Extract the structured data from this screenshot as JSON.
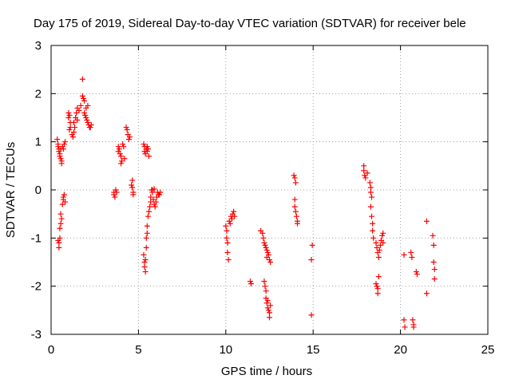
{
  "chart_data": {
    "type": "scatter",
    "title": "Day 175 of 2019, Sidereal Day-to-day VTEC variation (SDTVAR) for receiver bele",
    "xlabel": "GPS time / hours",
    "ylabel": "SDTVAR / TECUs",
    "xlim": [
      0,
      25
    ],
    "ylim": [
      -3,
      3
    ],
    "xticks": [
      0,
      5,
      10,
      15,
      20,
      25
    ],
    "yticks": [
      -3,
      -2,
      -1,
      0,
      1,
      2,
      3
    ],
    "grid": true,
    "marker": "+",
    "color": "#ff0000",
    "series": [
      {
        "name": "SDTVAR",
        "points": [
          [
            0.35,
            1.05
          ],
          [
            0.4,
            0.95
          ],
          [
            0.4,
            0.9
          ],
          [
            0.45,
            0.85
          ],
          [
            0.45,
            0.8
          ],
          [
            0.5,
            0.75
          ],
          [
            0.5,
            0.7
          ],
          [
            0.55,
            0.85
          ],
          [
            0.55,
            0.65
          ],
          [
            0.6,
            0.6
          ],
          [
            0.6,
            0.55
          ],
          [
            0.65,
            0.9
          ],
          [
            0.7,
            0.85
          ],
          [
            0.75,
            0.95
          ],
          [
            0.8,
            1.0
          ],
          [
            0.4,
            -1.05
          ],
          [
            0.45,
            -1.1
          ],
          [
            0.45,
            -1.2
          ],
          [
            0.5,
            -1.0
          ],
          [
            0.5,
            -0.8
          ],
          [
            0.55,
            -0.7
          ],
          [
            0.55,
            -0.5
          ],
          [
            0.6,
            -0.6
          ],
          [
            0.65,
            -0.3
          ],
          [
            0.7,
            -0.2
          ],
          [
            0.7,
            -0.15
          ],
          [
            0.75,
            -0.1
          ],
          [
            0.8,
            -0.25
          ],
          [
            1.0,
            1.6
          ],
          [
            1.0,
            1.5
          ],
          [
            1.05,
            1.55
          ],
          [
            1.1,
            1.4
          ],
          [
            1.05,
            1.25
          ],
          [
            1.1,
            1.3
          ],
          [
            1.2,
            1.15
          ],
          [
            1.25,
            1.1
          ],
          [
            1.3,
            1.2
          ],
          [
            1.3,
            1.4
          ],
          [
            1.35,
            1.3
          ],
          [
            1.4,
            1.5
          ],
          [
            1.45,
            1.6
          ],
          [
            1.5,
            1.45
          ],
          [
            1.5,
            1.7
          ],
          [
            1.6,
            1.65
          ],
          [
            1.7,
            1.75
          ],
          [
            1.8,
            2.3
          ],
          [
            1.8,
            1.95
          ],
          [
            1.85,
            1.9
          ],
          [
            1.9,
            1.85
          ],
          [
            1.9,
            1.6
          ],
          [
            1.95,
            1.55
          ],
          [
            2.0,
            1.7
          ],
          [
            2.0,
            1.5
          ],
          [
            2.05,
            1.45
          ],
          [
            2.1,
            1.4
          ],
          [
            2.1,
            1.75
          ],
          [
            2.15,
            1.35
          ],
          [
            2.2,
            1.3
          ],
          [
            2.25,
            1.3
          ],
          [
            2.3,
            1.35
          ],
          [
            3.6,
            -0.05
          ],
          [
            3.6,
            -0.1
          ],
          [
            3.65,
            -0.15
          ],
          [
            3.7,
            0.0
          ],
          [
            3.75,
            -0.05
          ],
          [
            3.85,
            0.9
          ],
          [
            3.85,
            0.8
          ],
          [
            3.9,
            0.85
          ],
          [
            3.95,
            0.75
          ],
          [
            4.0,
            0.7
          ],
          [
            4.0,
            0.55
          ],
          [
            4.05,
            0.6
          ],
          [
            4.1,
            0.95
          ],
          [
            4.15,
            0.9
          ],
          [
            4.2,
            0.65
          ],
          [
            4.3,
            1.3
          ],
          [
            4.35,
            1.25
          ],
          [
            4.4,
            1.15
          ],
          [
            4.45,
            1.05
          ],
          [
            4.5,
            1.1
          ],
          [
            4.6,
            0.1
          ],
          [
            4.65,
            0.2
          ],
          [
            4.65,
            0.05
          ],
          [
            4.7,
            -0.05
          ],
          [
            4.7,
            -0.1
          ],
          [
            5.3,
            0.95
          ],
          [
            5.35,
            0.9
          ],
          [
            5.35,
            0.8
          ],
          [
            5.4,
            0.75
          ],
          [
            5.45,
            0.85
          ],
          [
            5.5,
            0.9
          ],
          [
            5.5,
            0.8
          ],
          [
            5.55,
            0.85
          ],
          [
            5.6,
            0.7
          ],
          [
            5.3,
            -1.35
          ],
          [
            5.35,
            -1.5
          ],
          [
            5.35,
            -1.6
          ],
          [
            5.4,
            -1.7
          ],
          [
            5.4,
            -1.45
          ],
          [
            5.45,
            -1.2
          ],
          [
            5.45,
            -1.0
          ],
          [
            5.5,
            -0.9
          ],
          [
            5.5,
            -0.75
          ],
          [
            5.55,
            -0.55
          ],
          [
            5.6,
            -0.45
          ],
          [
            5.65,
            -0.35
          ],
          [
            5.7,
            -0.25
          ],
          [
            5.7,
            -0.15
          ],
          [
            5.75,
            0.0
          ],
          [
            5.8,
            -0.05
          ],
          [
            5.85,
            -0.2
          ],
          [
            5.9,
            -0.3
          ],
          [
            5.95,
            -0.35
          ],
          [
            6.0,
            -0.25
          ],
          [
            6.05,
            -0.15
          ],
          [
            6.1,
            -0.05
          ],
          [
            6.15,
            -0.1
          ],
          [
            6.2,
            -0.1
          ],
          [
            6.25,
            -0.05
          ],
          [
            5.8,
            0.0
          ],
          [
            5.9,
            0.02
          ],
          [
            10.0,
            -0.75
          ],
          [
            10.05,
            -0.85
          ],
          [
            10.05,
            -1.0
          ],
          [
            10.1,
            -1.1
          ],
          [
            10.1,
            -1.3
          ],
          [
            10.15,
            -1.45
          ],
          [
            10.2,
            -0.65
          ],
          [
            10.25,
            -0.7
          ],
          [
            10.3,
            -0.55
          ],
          [
            10.35,
            -0.6
          ],
          [
            10.4,
            -0.5
          ],
          [
            10.45,
            -0.45
          ],
          [
            10.5,
            -0.55
          ],
          [
            11.4,
            -1.9
          ],
          [
            11.45,
            -1.95
          ],
          [
            12.0,
            -0.85
          ],
          [
            12.1,
            -0.9
          ],
          [
            12.15,
            -1.0
          ],
          [
            12.2,
            -1.1
          ],
          [
            12.25,
            -1.15
          ],
          [
            12.3,
            -1.2
          ],
          [
            12.35,
            -1.25
          ],
          [
            12.35,
            -1.4
          ],
          [
            12.4,
            -1.3
          ],
          [
            12.45,
            -1.35
          ],
          [
            12.5,
            -1.45
          ],
          [
            12.55,
            -1.5
          ],
          [
            12.2,
            -1.9
          ],
          [
            12.25,
            -2.0
          ],
          [
            12.3,
            -2.1
          ],
          [
            12.3,
            -2.25
          ],
          [
            12.35,
            -2.35
          ],
          [
            12.4,
            -2.3
          ],
          [
            12.4,
            -2.45
          ],
          [
            12.45,
            -2.5
          ],
          [
            12.5,
            -2.55
          ],
          [
            12.5,
            -2.65
          ],
          [
            12.55,
            -2.4
          ],
          [
            13.9,
            0.3
          ],
          [
            13.95,
            0.25
          ],
          [
            14.0,
            0.15
          ],
          [
            13.95,
            -0.2
          ],
          [
            13.95,
            -0.35
          ],
          [
            14.0,
            -0.45
          ],
          [
            14.05,
            -0.55
          ],
          [
            14.1,
            -0.65
          ],
          [
            14.1,
            -0.7
          ],
          [
            14.9,
            -1.45
          ],
          [
            14.9,
            -2.6
          ],
          [
            14.95,
            -1.15
          ],
          [
            17.9,
            0.5
          ],
          [
            17.9,
            0.4
          ],
          [
            17.95,
            0.3
          ],
          [
            18.0,
            0.25
          ],
          [
            18.1,
            0.35
          ],
          [
            18.25,
            0.15
          ],
          [
            18.3,
            0.05
          ],
          [
            18.3,
            -0.05
          ],
          [
            18.35,
            -0.15
          ],
          [
            18.3,
            -0.35
          ],
          [
            18.35,
            -0.55
          ],
          [
            18.4,
            -0.7
          ],
          [
            18.4,
            -0.85
          ],
          [
            18.45,
            -1.0
          ],
          [
            18.6,
            -1.1
          ],
          [
            18.65,
            -1.2
          ],
          [
            18.7,
            -1.3
          ],
          [
            18.75,
            -1.4
          ],
          [
            18.8,
            -1.25
          ],
          [
            18.85,
            -1.15
          ],
          [
            18.9,
            -1.05
          ],
          [
            18.95,
            -0.95
          ],
          [
            19.0,
            -0.9
          ],
          [
            19.0,
            -1.1
          ],
          [
            18.6,
            -1.95
          ],
          [
            18.65,
            -2.0
          ],
          [
            18.7,
            -2.05
          ],
          [
            18.7,
            -2.15
          ],
          [
            18.75,
            -1.8
          ],
          [
            20.2,
            -1.35
          ],
          [
            20.2,
            -2.7
          ],
          [
            20.25,
            -2.85
          ],
          [
            20.6,
            -1.3
          ],
          [
            20.65,
            -1.4
          ],
          [
            20.7,
            -2.7
          ],
          [
            20.75,
            -2.8
          ],
          [
            20.75,
            -2.85
          ],
          [
            20.9,
            -1.7
          ],
          [
            20.95,
            -1.75
          ],
          [
            21.5,
            -0.65
          ],
          [
            21.5,
            -2.15
          ],
          [
            21.85,
            -0.95
          ],
          [
            21.9,
            -1.15
          ],
          [
            21.9,
            -1.5
          ],
          [
            21.95,
            -1.65
          ],
          [
            21.95,
            -1.85
          ]
        ]
      }
    ]
  }
}
